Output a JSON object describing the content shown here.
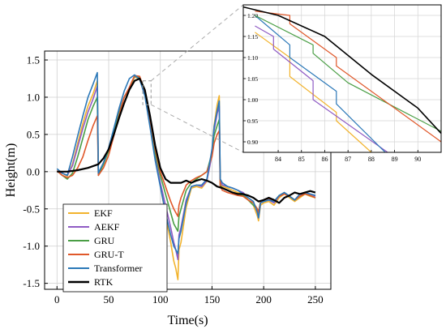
{
  "chart_data": [
    {
      "type": "line",
      "xlabel": "Time(s)",
      "ylabel": "Height(m)",
      "xlim": [
        -12,
        265
      ],
      "ylim": [
        -1.58,
        1.62
      ],
      "xticks": [
        0,
        50,
        100,
        150,
        200,
        250
      ],
      "yticks": [
        -1.5,
        -1.0,
        -0.5,
        0.0,
        0.5,
        1.0,
        1.5
      ],
      "ytick_labels": [
        "-1.5",
        "-1.0",
        "-0.5",
        "0.0",
        "0.5",
        "1.0",
        "1.5"
      ],
      "grid": true,
      "legend_position": "bottom-left",
      "series": [
        {
          "name": "EKF",
          "color": "#f2b32c",
          "x": [
            0,
            5,
            10,
            15,
            20,
            25,
            30,
            35,
            39,
            40,
            45,
            50,
            55,
            60,
            65,
            70,
            75,
            80,
            85,
            90,
            95,
            100,
            105,
            110,
            113,
            115,
            117,
            118,
            120,
            125,
            130,
            135,
            140,
            145,
            150,
            152,
            155,
            157,
            158,
            160,
            165,
            170,
            175,
            180,
            185,
            190,
            194,
            195,
            197,
            200,
            205,
            210,
            215,
            220,
            225,
            230,
            235,
            240,
            245,
            250
          ],
          "y": [
            0.01,
            -0.02,
            -0.06,
            0.1,
            0.38,
            0.65,
            0.88,
            1.05,
            1.22,
            -0.03,
            0.12,
            0.3,
            0.55,
            0.8,
            1.0,
            1.12,
            1.27,
            1.25,
            1.1,
            0.72,
            0.25,
            -0.18,
            -0.58,
            -0.95,
            -1.2,
            -1.3,
            -1.45,
            -1.05,
            -0.95,
            -0.48,
            -0.22,
            -0.2,
            -0.22,
            -0.13,
            0.25,
            0.62,
            0.9,
            1.02,
            -0.13,
            -0.2,
            -0.22,
            -0.25,
            -0.28,
            -0.3,
            -0.38,
            -0.45,
            -0.6,
            -0.66,
            -0.45,
            -0.42,
            -0.4,
            -0.45,
            -0.35,
            -0.3,
            -0.35,
            -0.4,
            -0.35,
            -0.3,
            -0.33,
            -0.35
          ]
        },
        {
          "name": "AEKF",
          "color": "#8f5bc4",
          "x": [
            0,
            5,
            10,
            15,
            20,
            25,
            30,
            35,
            39,
            40,
            45,
            50,
            55,
            60,
            65,
            70,
            75,
            80,
            85,
            90,
            95,
            100,
            105,
            110,
            113,
            115,
            117,
            118,
            120,
            125,
            130,
            135,
            140,
            145,
            150,
            152,
            155,
            157,
            158,
            160,
            165,
            170,
            175,
            180,
            185,
            190,
            194,
            195,
            197,
            200,
            205,
            210,
            215,
            220,
            225,
            230,
            235,
            240,
            245,
            250
          ],
          "y": [
            0.01,
            -0.02,
            -0.05,
            0.08,
            0.33,
            0.58,
            0.8,
            0.98,
            1.15,
            -0.02,
            0.12,
            0.3,
            0.55,
            0.8,
            1.0,
            1.13,
            1.28,
            1.26,
            1.05,
            0.62,
            0.18,
            -0.15,
            -0.45,
            -0.75,
            -0.95,
            -1.05,
            -1.18,
            -0.85,
            -0.75,
            -0.38,
            -0.2,
            -0.18,
            -0.2,
            -0.12,
            0.22,
            0.55,
            0.78,
            0.88,
            -0.12,
            -0.18,
            -0.2,
            -0.22,
            -0.25,
            -0.28,
            -0.35,
            -0.4,
            -0.55,
            -0.62,
            -0.42,
            -0.4,
            -0.38,
            -0.42,
            -0.33,
            -0.28,
            -0.33,
            -0.38,
            -0.33,
            -0.28,
            -0.3,
            -0.33
          ]
        },
        {
          "name": "GRU",
          "color": "#4a9e45",
          "x": [
            0,
            5,
            10,
            15,
            20,
            25,
            30,
            35,
            39,
            40,
            45,
            50,
            55,
            60,
            65,
            70,
            75,
            80,
            85,
            90,
            95,
            100,
            105,
            110,
            113,
            115,
            117,
            118,
            120,
            125,
            130,
            135,
            140,
            145,
            150,
            152,
            155,
            157,
            158,
            160,
            165,
            170,
            175,
            180,
            185,
            190,
            194,
            195,
            197,
            200,
            205,
            210,
            215,
            220,
            225,
            230,
            235,
            240,
            245,
            250
          ],
          "y": [
            0.01,
            -0.05,
            -0.1,
            -0.02,
            0.2,
            0.45,
            0.7,
            0.88,
            1.0,
            -0.05,
            0.1,
            0.28,
            0.52,
            0.78,
            1.0,
            1.12,
            1.28,
            1.27,
            1.1,
            0.7,
            0.25,
            -0.05,
            -0.3,
            -0.55,
            -0.7,
            -0.75,
            -0.8,
            -0.6,
            -0.5,
            -0.25,
            -0.15,
            -0.1,
            -0.05,
            0.0,
            0.25,
            0.48,
            0.62,
            0.7,
            -0.18,
            -0.22,
            -0.25,
            -0.28,
            -0.3,
            -0.32,
            -0.38,
            -0.45,
            -0.5,
            -0.55,
            -0.4,
            -0.38,
            -0.36,
            -0.4,
            -0.32,
            -0.28,
            -0.33,
            -0.38,
            -0.33,
            -0.3,
            -0.32,
            -0.35
          ]
        },
        {
          "name": "GRU-T",
          "color": "#e0582a",
          "x": [
            0,
            5,
            10,
            15,
            20,
            25,
            30,
            35,
            39,
            40,
            45,
            50,
            55,
            60,
            65,
            70,
            75,
            80,
            85,
            90,
            95,
            100,
            105,
            110,
            113,
            115,
            117,
            118,
            120,
            125,
            130,
            135,
            140,
            145,
            150,
            152,
            155,
            157,
            158,
            160,
            165,
            170,
            175,
            180,
            185,
            190,
            194,
            195,
            197,
            200,
            205,
            210,
            215,
            220,
            225,
            230,
            235,
            240,
            245,
            250
          ],
          "y": [
            0.01,
            -0.05,
            -0.08,
            -0.05,
            0.05,
            0.2,
            0.42,
            0.62,
            0.75,
            -0.05,
            0.05,
            0.22,
            0.48,
            0.75,
            1.0,
            1.13,
            1.29,
            1.28,
            1.08,
            0.7,
            0.3,
            0.0,
            -0.2,
            -0.4,
            -0.5,
            -0.55,
            -0.6,
            -0.45,
            -0.35,
            -0.18,
            -0.12,
            -0.08,
            -0.05,
            0.0,
            0.2,
            0.38,
            0.5,
            0.55,
            -0.2,
            -0.25,
            -0.28,
            -0.3,
            -0.32,
            -0.33,
            -0.38,
            -0.42,
            -0.5,
            -0.55,
            -0.4,
            -0.38,
            -0.36,
            -0.4,
            -0.33,
            -0.3,
            -0.33,
            -0.38,
            -0.33,
            -0.3,
            -0.32,
            -0.35
          ]
        },
        {
          "name": "Transformer",
          "color": "#2b78b8",
          "x": [
            0,
            5,
            10,
            15,
            20,
            25,
            30,
            35,
            39,
            40,
            45,
            50,
            55,
            60,
            65,
            70,
            75,
            80,
            85,
            90,
            95,
            100,
            105,
            110,
            113,
            115,
            117,
            118,
            120,
            125,
            130,
            135,
            140,
            145,
            150,
            152,
            155,
            157,
            158,
            160,
            165,
            170,
            175,
            180,
            185,
            190,
            194,
            195,
            197,
            200,
            205,
            210,
            215,
            220,
            225,
            230,
            235,
            240,
            245,
            250
          ],
          "y": [
            0.04,
            -0.02,
            -0.05,
            0.2,
            0.48,
            0.75,
            1.0,
            1.18,
            1.33,
            -0.02,
            0.12,
            0.32,
            0.58,
            0.85,
            1.08,
            1.25,
            1.3,
            1.24,
            1.02,
            0.6,
            0.15,
            -0.2,
            -0.55,
            -0.85,
            -1.0,
            -1.05,
            -1.1,
            -0.9,
            -0.8,
            -0.42,
            -0.2,
            -0.18,
            -0.18,
            -0.1,
            0.3,
            0.6,
            0.82,
            0.95,
            -0.1,
            -0.15,
            -0.2,
            -0.22,
            -0.25,
            -0.3,
            -0.35,
            -0.4,
            -0.55,
            -0.62,
            -0.42,
            -0.4,
            -0.38,
            -0.4,
            -0.32,
            -0.28,
            -0.33,
            -0.38,
            -0.3,
            -0.28,
            -0.3,
            -0.32
          ]
        },
        {
          "name": "RTK",
          "color": "#000000",
          "x": [
            0,
            10,
            20,
            30,
            40,
            45,
            50,
            55,
            60,
            65,
            70,
            75,
            80,
            85,
            90,
            95,
            100,
            105,
            110,
            115,
            120,
            125,
            130,
            135,
            140,
            145,
            150,
            155,
            160,
            165,
            170,
            175,
            180,
            185,
            190,
            195,
            200,
            205,
            210,
            215,
            220,
            225,
            230,
            235,
            240,
            245,
            250
          ],
          "y": [
            0.0,
            0.0,
            0.02,
            0.05,
            0.1,
            0.18,
            0.3,
            0.5,
            0.72,
            0.92,
            1.1,
            1.22,
            1.25,
            1.1,
            0.75,
            0.35,
            0.05,
            -0.1,
            -0.15,
            -0.15,
            -0.15,
            -0.12,
            -0.15,
            -0.12,
            -0.1,
            -0.12,
            -0.15,
            -0.2,
            -0.22,
            -0.25,
            -0.28,
            -0.3,
            -0.3,
            -0.32,
            -0.35,
            -0.4,
            -0.38,
            -0.35,
            -0.38,
            -0.42,
            -0.35,
            -0.32,
            -0.28,
            -0.3,
            -0.28,
            -0.26,
            -0.28
          ]
        }
      ]
    },
    {
      "type": "line",
      "title": "",
      "xlim": [
        82.5,
        91
      ],
      "ylim": [
        0.875,
        1.225
      ],
      "xticks": [
        84,
        85,
        86,
        87,
        88,
        89,
        90
      ],
      "yticks": [
        0.9,
        0.95,
        1.0,
        1.05,
        1.1,
        1.15,
        1.2
      ],
      "ytick_labels": [
        "0.90",
        "0.95",
        "1.00",
        "1.05",
        "1.10",
        "1.15",
        "1.20"
      ],
      "grid": true,
      "series": [
        {
          "name": "EKF",
          "color": "#f2b32c",
          "x": [
            83,
            84.5,
            84.5,
            86.5,
            86.5,
            88
          ],
          "y": [
            1.16,
            1.1,
            1.055,
            0.97,
            0.95,
            0.875
          ]
        },
        {
          "name": "AEKF",
          "color": "#8f5bc4",
          "x": [
            83,
            83.8,
            83.8,
            85.5,
            85.5,
            88.7
          ],
          "y": [
            1.175,
            1.15,
            1.12,
            1.045,
            1.0,
            0.875
          ]
        },
        {
          "name": "Transformer",
          "color": "#2b78b8",
          "x": [
            83,
            84.5,
            84.5,
            86.5,
            86.5,
            88.6
          ],
          "y": [
            1.2,
            1.13,
            1.1,
            1.02,
            0.99,
            0.875
          ]
        },
        {
          "name": "GRU",
          "color": "#4a9e45",
          "x": [
            83,
            85.5,
            85.5,
            87,
            91
          ],
          "y": [
            1.2,
            1.13,
            1.11,
            1.04,
            0.925
          ]
        },
        {
          "name": "GRU-T",
          "color": "#e0582a",
          "x": [
            83,
            84.5,
            84.5,
            86.5,
            86.5,
            91
          ],
          "y": [
            1.21,
            1.2,
            1.18,
            1.1,
            1.08,
            0.9
          ]
        },
        {
          "name": "RTK",
          "color": "#000000",
          "x": [
            82.5,
            84,
            86,
            88,
            90,
            91
          ],
          "y": [
            1.22,
            1.2,
            1.15,
            1.06,
            0.98,
            0.92
          ]
        }
      ]
    }
  ]
}
